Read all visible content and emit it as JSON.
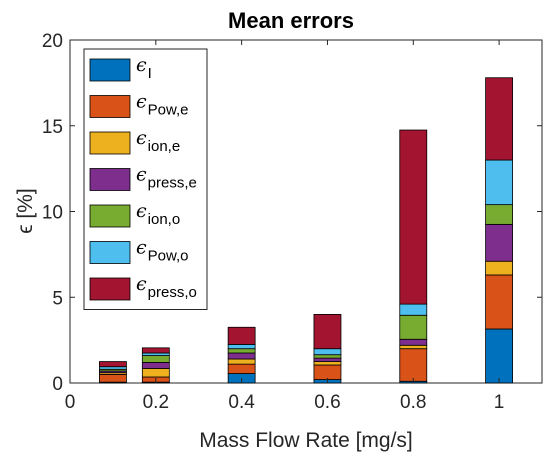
{
  "chart_data": {
    "type": "bar",
    "stacked": true,
    "title": "Mean errors",
    "xlabel": "Mass Flow Rate [mg/s]",
    "ylabel": "ϵ [%]",
    "x": [
      0.1,
      0.2,
      0.4,
      0.6,
      0.8,
      1.0
    ],
    "xlim": [
      0,
      1.1
    ],
    "ylim": [
      0,
      20
    ],
    "xticks": [
      0,
      0.2,
      0.4,
      0.6,
      0.8,
      1
    ],
    "xtick_labels": [
      "0",
      "0.2",
      "0.4",
      "0.6",
      "0.8",
      "1"
    ],
    "yticks": [
      0,
      5,
      10,
      15,
      20
    ],
    "ytick_labels": [
      "0",
      "5",
      "10",
      "15",
      "20"
    ],
    "grid": false,
    "legend_position": "top-left",
    "series": [
      {
        "name": "ϵ",
        "sub": "I",
        "color": "#0072BD",
        "values": [
          0.05,
          0.05,
          0.55,
          0.2,
          0.1,
          3.15
        ]
      },
      {
        "name": "ϵ",
        "sub": "Pow,e",
        "color": "#D95319",
        "values": [
          0.45,
          0.3,
          0.55,
          0.85,
          1.9,
          3.15
        ]
      },
      {
        "name": "ϵ",
        "sub": "ion,e",
        "color": "#EDB120",
        "values": [
          0.1,
          0.5,
          0.3,
          0.2,
          0.2,
          0.8
        ]
      },
      {
        "name": "ϵ",
        "sub": "press,e",
        "color": "#7E2F8E",
        "values": [
          0.1,
          0.35,
          0.35,
          0.2,
          0.35,
          2.15
        ]
      },
      {
        "name": "ϵ",
        "sub": "ion,o",
        "color": "#77AC30",
        "values": [
          0.1,
          0.4,
          0.25,
          0.2,
          1.4,
          1.15
        ]
      },
      {
        "name": "ϵ",
        "sub": "Pow,o",
        "color": "#4DBEEE",
        "values": [
          0.15,
          0.15,
          0.25,
          0.35,
          0.65,
          2.6
        ]
      },
      {
        "name": "ϵ",
        "sub": "press,o",
        "color": "#A2142F",
        "values": [
          0.3,
          0.3,
          1.0,
          2.0,
          10.15,
          4.8
        ]
      }
    ]
  }
}
